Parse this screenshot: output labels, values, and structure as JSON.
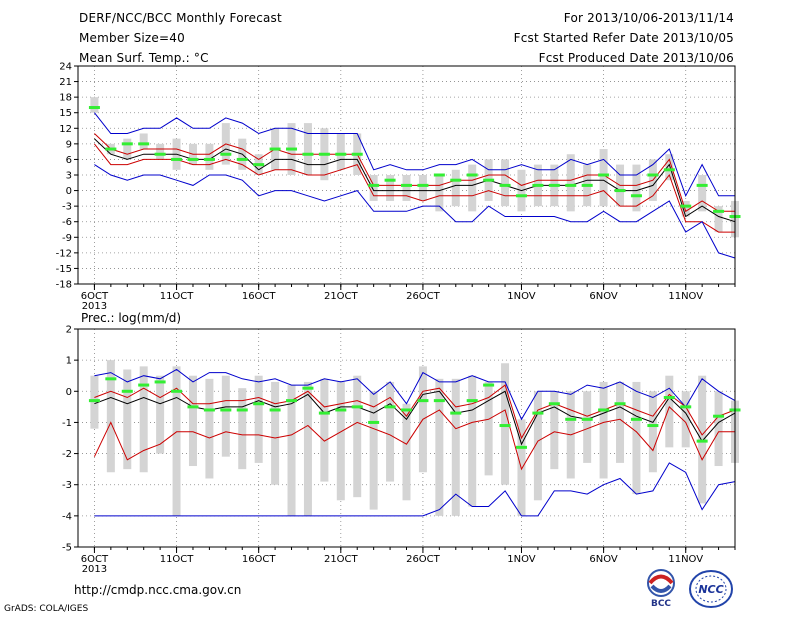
{
  "header": {
    "title": "DERF/NCC/BCC Monthly Forecast",
    "member_size": "Member Size=40",
    "variable": "Mean Surf. Temp.: °C",
    "period": "For 2013/10/06-2013/11/14",
    "started": "Fcst Started Refer Date 2013/10/05",
    "produced": "Fcst Produced Date 2013/10/06"
  },
  "footer": {
    "url": "http://cmdp.ncc.cma.gov.cn",
    "credit": "GrADS: COLA/IGES",
    "logo_bcc": "BCC",
    "logo_ncc": "NCC"
  },
  "chart_data": [
    {
      "type": "line",
      "ylabel": "Mean Surf. Temp.: °C",
      "ylim": [
        -18,
        24
      ],
      "yticks": [
        24,
        21,
        18,
        15,
        12,
        9,
        6,
        3,
        0,
        -3,
        -6,
        -9,
        -12,
        -15,
        -18
      ],
      "xlim": [
        5,
        45
      ],
      "xticks": [
        {
          "x": 6,
          "label": "6OCT"
        },
        {
          "x": 11,
          "label": "11OCT"
        },
        {
          "x": 16,
          "label": "16OCT"
        },
        {
          "x": 21,
          "label": "21OCT"
        },
        {
          "x": 26,
          "label": "26OCT"
        },
        {
          "x": 32,
          "label": "1NOV"
        },
        {
          "x": 37,
          "label": "6NOV"
        },
        {
          "x": 42,
          "label": "11NOV"
        }
      ],
      "year_label": "2013",
      "grid": true,
      "days": [
        6,
        7,
        8,
        9,
        10,
        11,
        12,
        13,
        14,
        15,
        16,
        17,
        18,
        19,
        20,
        21,
        22,
        23,
        24,
        25,
        26,
        27,
        28,
        29,
        30,
        31,
        32,
        33,
        34,
        35,
        36,
        37,
        38,
        39,
        40,
        41,
        42,
        43,
        44,
        45
      ],
      "series": [
        {
          "key": "max",
          "color": "#0000cc",
          "values": [
            15,
            11,
            11,
            12,
            12,
            14,
            12,
            12,
            14,
            13,
            11,
            12,
            12,
            11,
            11,
            11,
            11,
            4,
            5,
            4,
            4,
            5,
            5,
            6,
            4,
            4,
            5,
            4,
            4,
            6,
            5,
            6,
            3,
            3,
            5,
            8,
            -1,
            5,
            -1,
            -1
          ]
        },
        {
          "key": "p75",
          "color": "#cc0000",
          "values": [
            11,
            8,
            7,
            8,
            8,
            8,
            7,
            7,
            9,
            8,
            6,
            8,
            7,
            7,
            7,
            7,
            7,
            1,
            1,
            1,
            1,
            1,
            2,
            2,
            3,
            3,
            1,
            2,
            2,
            2,
            3,
            3,
            1,
            1,
            2,
            6,
            -4,
            -2,
            -4,
            -4
          ]
        },
        {
          "key": "mean",
          "color": "#000000",
          "values": [
            10,
            7,
            6,
            7,
            7,
            7,
            6,
            6,
            8,
            7,
            4,
            6,
            6,
            5,
            5,
            6,
            6,
            0,
            0,
            0,
            0,
            0,
            1,
            1,
            2,
            1,
            0,
            1,
            1,
            1,
            2,
            2,
            0,
            0,
            1,
            5,
            -5,
            -3,
            -5,
            -6
          ]
        },
        {
          "key": "p25",
          "color": "#cc0000",
          "values": [
            9,
            5,
            5,
            6,
            6,
            6,
            5,
            5,
            6,
            5,
            3,
            4,
            4,
            3,
            3,
            4,
            5,
            -1,
            -1,
            -1,
            -2,
            -1,
            -1,
            -1,
            0,
            -1,
            -1,
            -1,
            -1,
            -1,
            -1,
            0,
            -3,
            -3,
            -1,
            3,
            -6,
            -6,
            -8,
            -8
          ]
        },
        {
          "key": "min",
          "color": "#0000cc",
          "values": [
            5,
            3,
            2,
            3,
            3,
            2,
            1,
            3,
            3,
            2,
            -1,
            0,
            0,
            -1,
            -2,
            -1,
            0,
            -4,
            -4,
            -4,
            -3,
            -3,
            -6,
            -6,
            -3,
            -5,
            -5,
            -5,
            -5,
            -6,
            -6,
            -4,
            -6,
            -6,
            -4,
            -2,
            -8,
            -6,
            -12,
            -13
          ]
        }
      ],
      "box_low": [
        15,
        7,
        6,
        8,
        6,
        4,
        5,
        4,
        5,
        4,
        3,
        4,
        3,
        3,
        2,
        4,
        3,
        -2,
        -2,
        -2,
        -2,
        -4,
        -3,
        -4,
        -2,
        -3,
        -4,
        -3,
        -3,
        -4,
        -3,
        -3,
        -3,
        -4,
        -2,
        2,
        -5,
        -4,
        -8,
        -9
      ],
      "box_high": [
        18,
        9,
        10,
        11,
        9,
        10,
        9,
        9,
        13,
        10,
        7,
        12,
        13,
        13,
        12,
        11,
        11,
        3,
        3,
        3,
        3,
        3,
        4,
        5,
        6,
        6,
        4,
        5,
        5,
        7,
        5,
        8,
        5,
        5,
        6,
        7,
        -2,
        3,
        -3,
        -2
      ],
      "obs": [
        16,
        8,
        9,
        9,
        7,
        6,
        6,
        6,
        7,
        6,
        5,
        8,
        8,
        7,
        7,
        7,
        7,
        1,
        2,
        1,
        1,
        3,
        2,
        3,
        2,
        1,
        -1,
        1,
        1,
        1,
        1,
        3,
        0,
        -1,
        3,
        4,
        -3,
        1,
        -4,
        -5
      ]
    },
    {
      "type": "line",
      "ylabel": "Prec.: log(mm/d)",
      "ylim": [
        -5,
        2
      ],
      "yticks": [
        2,
        1,
        0,
        -1,
        -2,
        -3,
        -4,
        -5
      ],
      "xlim": [
        5,
        45
      ],
      "xticks": [
        {
          "x": 6,
          "label": "6OCT"
        },
        {
          "x": 11,
          "label": "11OCT"
        },
        {
          "x": 16,
          "label": "16OCT"
        },
        {
          "x": 21,
          "label": "21OCT"
        },
        {
          "x": 26,
          "label": "26OCT"
        },
        {
          "x": 32,
          "label": "1NOV"
        },
        {
          "x": 37,
          "label": "6NOV"
        },
        {
          "x": 42,
          "label": "11NOV"
        }
      ],
      "year_label": "2013",
      "grid": true,
      "days": [
        6,
        7,
        8,
        9,
        10,
        11,
        12,
        13,
        14,
        15,
        16,
        17,
        18,
        19,
        20,
        21,
        22,
        23,
        24,
        25,
        26,
        27,
        28,
        29,
        30,
        31,
        32,
        33,
        34,
        35,
        36,
        37,
        38,
        39,
        40,
        41,
        42,
        43,
        44,
        45
      ],
      "series": [
        {
          "key": "max",
          "color": "#0000cc",
          "values": [
            0.5,
            0.6,
            0.3,
            0.5,
            0.4,
            0.7,
            0.3,
            0.6,
            0.6,
            0.4,
            0.3,
            0.4,
            0.2,
            0.2,
            0.4,
            0.3,
            0.4,
            -0.1,
            0.3,
            -0.4,
            0.6,
            0.3,
            0.3,
            0.5,
            0.3,
            0.3,
            -0.9,
            0.0,
            0.0,
            -0.1,
            0.2,
            0.1,
            0.3,
            0.0,
            -0.2,
            0.1,
            -0.5,
            0.4,
            0.0,
            -0.3
          ]
        },
        {
          "key": "p75",
          "color": "#cc0000",
          "values": [
            -0.2,
            0.0,
            -0.2,
            0.1,
            -0.2,
            0.1,
            -0.4,
            -0.4,
            -0.3,
            -0.3,
            -0.2,
            -0.4,
            -0.3,
            0.0,
            -0.5,
            -0.4,
            -0.3,
            -0.5,
            -0.2,
            -0.8,
            0.0,
            0.1,
            -0.5,
            -0.4,
            -0.2,
            0.2,
            -1.5,
            -0.6,
            -0.4,
            -0.6,
            -0.8,
            -0.6,
            -0.4,
            -0.6,
            -0.8,
            -0.1,
            -0.5,
            -1.4,
            -0.8,
            -0.6
          ]
        },
        {
          "key": "mean",
          "color": "#000000",
          "values": [
            -0.4,
            -0.2,
            -0.4,
            -0.2,
            -0.4,
            -0.2,
            -0.5,
            -0.6,
            -0.5,
            -0.5,
            -0.3,
            -0.5,
            -0.4,
            -0.1,
            -0.7,
            -0.5,
            -0.5,
            -0.7,
            -0.4,
            -0.9,
            -0.1,
            0.0,
            -0.7,
            -0.6,
            -0.3,
            0.0,
            -1.7,
            -0.7,
            -0.5,
            -0.8,
            -0.9,
            -0.7,
            -0.5,
            -0.8,
            -1.0,
            -0.2,
            -0.7,
            -1.6,
            -1.0,
            -0.7
          ]
        },
        {
          "key": "p25",
          "color": "#cc0000",
          "values": [
            -2.1,
            -1.0,
            -2.2,
            -1.9,
            -1.7,
            -1.3,
            -1.3,
            -1.5,
            -1.3,
            -1.4,
            -1.4,
            -1.5,
            -1.4,
            -1.1,
            -1.6,
            -1.3,
            -1.0,
            -1.2,
            -1.4,
            -1.7,
            -0.9,
            -0.6,
            -1.2,
            -1.0,
            -0.9,
            -0.6,
            -2.5,
            -1.6,
            -1.3,
            -1.4,
            -1.2,
            -1.0,
            -0.9,
            -1.3,
            -1.9,
            -0.5,
            -1.0,
            -2.2,
            -1.3,
            -1.3
          ]
        },
        {
          "key": "min",
          "color": "#0000cc",
          "values": [
            -4,
            -4,
            -4,
            -4,
            -4,
            -4,
            -4,
            -4,
            -4,
            -4,
            -4,
            -4,
            -4,
            -4,
            -4,
            -4,
            -4,
            -4,
            -4,
            -4,
            -4,
            -3.8,
            -3.3,
            -3.7,
            -3.7,
            -3.2,
            -4,
            -4,
            -3.2,
            -3.2,
            -3.3,
            -3.0,
            -2.8,
            -3.3,
            -3.2,
            -2.3,
            -2.6,
            -3.8,
            -3.0,
            -2.9
          ]
        }
      ],
      "box_low": [
        -1.2,
        -2.6,
        -2.5,
        -2.6,
        -2.0,
        -4.0,
        -2.4,
        -2.8,
        -2.1,
        -2.5,
        -2.3,
        -3.0,
        -4.0,
        -4.0,
        -2.9,
        -3.5,
        -3.4,
        -3.8,
        -2.9,
        -3.5,
        -2.6,
        -4.0,
        -4.0,
        -3.7,
        -2.7,
        -3.0,
        -4.0,
        -3.5,
        -2.5,
        -2.8,
        -2.3,
        -2.8,
        -2.3,
        -3.3,
        -2.6,
        -1.8,
        -1.8,
        -3.6,
        -2.4,
        -2.3
      ],
      "box_high": [
        0.5,
        1.0,
        0.7,
        0.8,
        0.5,
        0.8,
        0.5,
        0.4,
        0.5,
        0.1,
        0.5,
        0.3,
        0.2,
        0.3,
        0.4,
        0.3,
        0.5,
        0.0,
        0.3,
        -0.4,
        0.8,
        0.4,
        0.4,
        0.5,
        0.3,
        0.9,
        -0.9,
        0.0,
        0.0,
        0.0,
        0.0,
        0.3,
        0.3,
        0.3,
        0.0,
        0.5,
        0.0,
        0.5,
        0.0,
        -0.3
      ],
      "obs": [
        -0.3,
        0.4,
        0.0,
        0.2,
        0.3,
        0.0,
        -0.5,
        -0.6,
        -0.6,
        -0.6,
        -0.4,
        -0.6,
        -0.3,
        0.1,
        -0.7,
        -0.6,
        -0.5,
        -1.0,
        -0.5,
        -0.6,
        -0.3,
        -0.3,
        -0.7,
        -0.3,
        0.2,
        -1.1,
        -1.8,
        -0.7,
        -0.4,
        -0.9,
        -0.9,
        -0.6,
        -0.4,
        -0.9,
        -1.1,
        -0.2,
        -0.5,
        -1.6,
        -0.8,
        -0.6
      ]
    }
  ]
}
